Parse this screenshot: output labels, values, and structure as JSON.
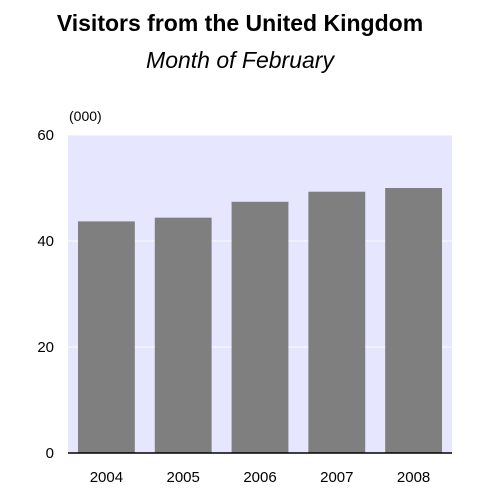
{
  "chart_data": {
    "type": "bar",
    "title": "Visitors from the United Kingdom",
    "subtitle": "Month of February",
    "unit_label": "(000)",
    "categories": [
      "2004",
      "2005",
      "2006",
      "2007",
      "2008"
    ],
    "values": [
      43.7,
      44.4,
      47.4,
      49.3,
      50.0
    ],
    "ylim": [
      0,
      60
    ],
    "yticks": [
      0,
      20,
      40,
      60
    ],
    "grid": true,
    "colors": {
      "bar": "#7f7f7f",
      "plot_background": "#e6e6ff",
      "gridline": "#ffffff",
      "axis": "#000000"
    }
  }
}
